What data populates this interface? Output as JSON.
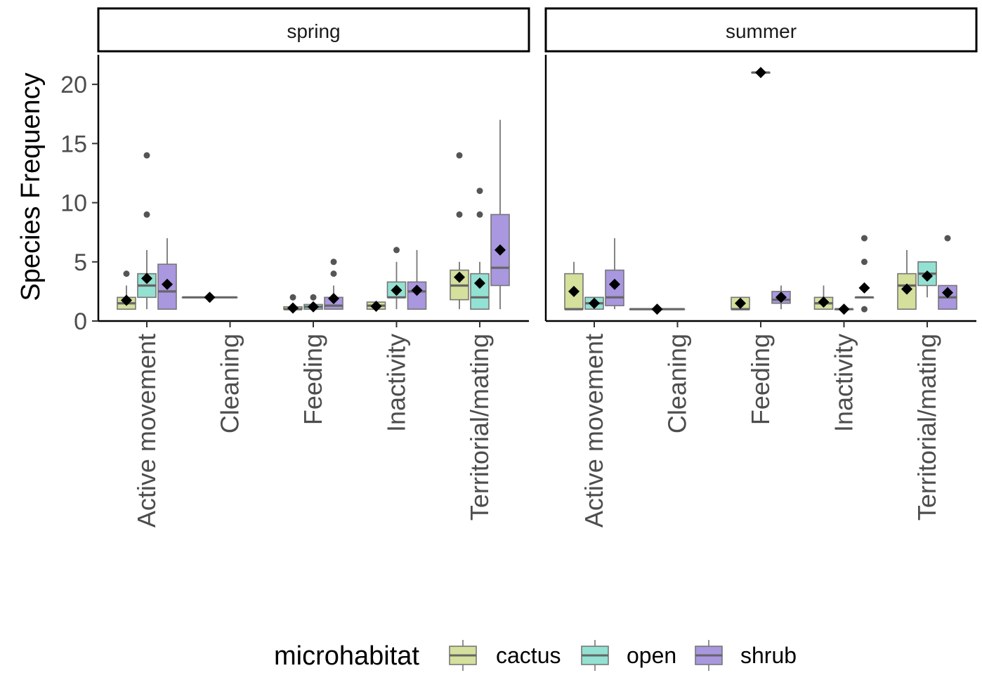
{
  "chart_data": {
    "type": "box",
    "facet_by": "season",
    "facets": [
      "spring",
      "summer"
    ],
    "categories": [
      "Active movement",
      "Cleaning",
      "Feeding",
      "Inactivity",
      "Territorial/mating"
    ],
    "ylabel": "Species Frequency",
    "xlabel": "",
    "ylim": [
      0,
      22.5
    ],
    "yticks": [
      0,
      5,
      10,
      15,
      20
    ],
    "grid": false,
    "legend": {
      "title": "microhabitat",
      "position": "bottom",
      "entries": [
        {
          "name": "cactus",
          "color": "#d4e09b"
        },
        {
          "name": "open",
          "color": "#93e1d2"
        },
        {
          "name": "shrub",
          "color": "#a997df"
        }
      ]
    },
    "mean_marker": "black diamond",
    "boxes": [
      {
        "facet": "spring",
        "category": "Active movement",
        "group": "cactus",
        "q1": 1,
        "median": 1.5,
        "q3": 2,
        "whisker_low": 1,
        "whisker_high": 3,
        "mean": 1.75,
        "outliers": [
          4
        ]
      },
      {
        "facet": "spring",
        "category": "Active movement",
        "group": "open",
        "q1": 2,
        "median": 3,
        "q3": 4,
        "whisker_low": 1,
        "whisker_high": 6,
        "mean": 3.6,
        "outliers": [
          9,
          14
        ]
      },
      {
        "facet": "spring",
        "category": "Active movement",
        "group": "shrub",
        "q1": 1,
        "median": 2.5,
        "q3": 4.8,
        "whisker_low": 1,
        "whisker_high": 7,
        "mean": 3.1,
        "outliers": []
      },
      {
        "facet": "spring",
        "category": "Cleaning",
        "group": "cactus",
        "q1": 2,
        "median": 2,
        "q3": 2,
        "whisker_low": 2,
        "whisker_high": 2,
        "mean": 2,
        "outliers": []
      },
      {
        "facet": "spring",
        "category": "Feeding",
        "group": "cactus",
        "q1": 1,
        "median": 1,
        "q3": 1.2,
        "whisker_low": 1,
        "whisker_high": 1.2,
        "mean": 1.1,
        "outliers": [
          2
        ]
      },
      {
        "facet": "spring",
        "category": "Feeding",
        "group": "open",
        "q1": 1,
        "median": 1.2,
        "q3": 1.4,
        "whisker_low": 1,
        "whisker_high": 1.4,
        "mean": 1.2,
        "outliers": [
          2
        ]
      },
      {
        "facet": "spring",
        "category": "Feeding",
        "group": "shrub",
        "q1": 1,
        "median": 1.3,
        "q3": 2,
        "whisker_low": 1,
        "whisker_high": 3,
        "mean": 1.9,
        "outliers": [
          4,
          5
        ]
      },
      {
        "facet": "spring",
        "category": "Inactivity",
        "group": "cactus",
        "q1": 1,
        "median": 1.3,
        "q3": 1.6,
        "whisker_low": 1,
        "whisker_high": 1.6,
        "mean": 1.25,
        "outliers": []
      },
      {
        "facet": "spring",
        "category": "Inactivity",
        "group": "open",
        "q1": 2,
        "median": 2,
        "q3": 3.3,
        "whisker_low": 1,
        "whisker_high": 5,
        "mean": 2.6,
        "outliers": [
          6
        ]
      },
      {
        "facet": "spring",
        "category": "Inactivity",
        "group": "shrub",
        "q1": 1,
        "median": 2.5,
        "q3": 3.3,
        "whisker_low": 1,
        "whisker_high": 6,
        "mean": 2.6,
        "outliers": []
      },
      {
        "facet": "spring",
        "category": "Territorial/mating",
        "group": "cactus",
        "q1": 1.8,
        "median": 3,
        "q3": 4.3,
        "whisker_low": 1,
        "whisker_high": 5,
        "mean": 3.7,
        "outliers": [
          9,
          14
        ]
      },
      {
        "facet": "spring",
        "category": "Territorial/mating",
        "group": "open",
        "q1": 1,
        "median": 2,
        "q3": 4,
        "whisker_low": 1,
        "whisker_high": 5,
        "mean": 3.2,
        "outliers": [
          9,
          11
        ]
      },
      {
        "facet": "spring",
        "category": "Territorial/mating",
        "group": "shrub",
        "q1": 3,
        "median": 4.5,
        "q3": 9,
        "whisker_low": 1,
        "whisker_high": 17,
        "mean": 6,
        "outliers": []
      },
      {
        "facet": "summer",
        "category": "Active movement",
        "group": "cactus",
        "q1": 1,
        "median": 1,
        "q3": 4,
        "whisker_low": 1,
        "whisker_high": 5,
        "mean": 2.5,
        "outliers": []
      },
      {
        "facet": "summer",
        "category": "Active movement",
        "group": "open",
        "q1": 1,
        "median": 1.5,
        "q3": 2,
        "whisker_low": 1,
        "whisker_high": 2,
        "mean": 1.5,
        "outliers": []
      },
      {
        "facet": "summer",
        "category": "Active movement",
        "group": "shrub",
        "q1": 1.3,
        "median": 2,
        "q3": 4.3,
        "whisker_low": 1,
        "whisker_high": 7,
        "mean": 3.1,
        "outliers": []
      },
      {
        "facet": "summer",
        "category": "Cleaning",
        "group": "cactus",
        "q1": 1,
        "median": 1,
        "q3": 1,
        "whisker_low": 1,
        "whisker_high": 1,
        "mean": 1,
        "outliers": []
      },
      {
        "facet": "summer",
        "category": "Feeding",
        "group": "cactus",
        "q1": 1,
        "median": 1,
        "q3": 2,
        "whisker_low": 1,
        "whisker_high": 2,
        "mean": 1.5,
        "outliers": []
      },
      {
        "facet": "summer",
        "category": "Feeding",
        "group": "open",
        "q1": 21,
        "median": 21,
        "q3": 21,
        "whisker_low": 21,
        "whisker_high": 21,
        "mean": 21,
        "outliers": []
      },
      {
        "facet": "summer",
        "category": "Feeding",
        "group": "shrub",
        "q1": 1.5,
        "median": 1.8,
        "q3": 2.5,
        "whisker_low": 1,
        "whisker_high": 3,
        "mean": 2,
        "outliers": []
      },
      {
        "facet": "summer",
        "category": "Inactivity",
        "group": "cactus",
        "q1": 1,
        "median": 1.5,
        "q3": 2,
        "whisker_low": 1,
        "whisker_high": 3,
        "mean": 1.6,
        "outliers": []
      },
      {
        "facet": "summer",
        "category": "Inactivity",
        "group": "open",
        "q1": 1,
        "median": 1,
        "q3": 1,
        "whisker_low": 1,
        "whisker_high": 1,
        "mean": 1,
        "outliers": []
      },
      {
        "facet": "summer",
        "category": "Inactivity",
        "group": "shrub",
        "q1": 2,
        "median": 2,
        "q3": 2,
        "whisker_low": 2,
        "whisker_high": 2,
        "mean": 2.8,
        "outliers": [
          1,
          5,
          7
        ]
      },
      {
        "facet": "summer",
        "category": "Territorial/mating",
        "group": "cactus",
        "q1": 1,
        "median": 3,
        "q3": 4,
        "whisker_low": 1,
        "whisker_high": 6,
        "mean": 2.7,
        "outliers": []
      },
      {
        "facet": "summer",
        "category": "Territorial/mating",
        "group": "open",
        "q1": 3,
        "median": 4,
        "q3": 5,
        "whisker_low": 2,
        "whisker_high": 5,
        "mean": 3.8,
        "outliers": []
      },
      {
        "facet": "summer",
        "category": "Territorial/mating",
        "group": "shrub",
        "q1": 1,
        "median": 2,
        "q3": 3,
        "whisker_low": 1,
        "whisker_high": 3,
        "mean": 2.4,
        "outliers": [
          7
        ]
      }
    ]
  }
}
